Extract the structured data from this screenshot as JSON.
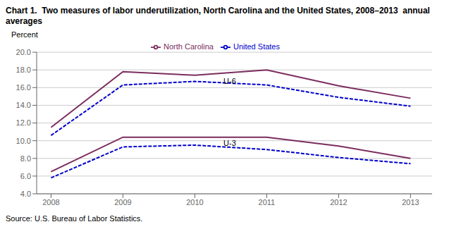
{
  "chart_data": {
    "type": "line",
    "title": "Chart 1.  Two measures of labor underutilization, North Carolina and the United States, 2008–2013  annual averages",
    "ylabel": "Percent",
    "source": "Source: U.S. Bureau of Labor Statistics.",
    "x": [
      2008,
      2009,
      2010,
      2011,
      2012,
      2013
    ],
    "xlim": [
      2007.8,
      2013.3
    ],
    "xticks": [
      2008,
      2009,
      2010,
      2011,
      2012,
      2013
    ],
    "ylim": [
      4.0,
      20.0
    ],
    "yticks": [
      {
        "value": 4,
        "label": "4.0"
      },
      {
        "value": 6,
        "label": "6.0"
      },
      {
        "value": 8,
        "label": "8.0"
      },
      {
        "value": 10,
        "label": "10.0"
      },
      {
        "value": 12,
        "label": "12.0"
      },
      {
        "value": 14,
        "label": "14.0"
      },
      {
        "value": 16,
        "label": "16.0"
      },
      {
        "value": 18,
        "label": "18.0"
      },
      {
        "value": 20,
        "label": "20.0"
      }
    ],
    "grid": true,
    "legend": "top",
    "series": [
      {
        "name": "North Carolina",
        "color": "#7B2D5E",
        "line_style": "solid",
        "values": [
          11.5,
          17.8,
          17.4,
          18.0,
          16.2,
          14.8
        ]
      },
      {
        "name": "United States",
        "color": "#0000CC",
        "line_style": "dashed",
        "values": [
          10.6,
          16.3,
          16.7,
          16.3,
          14.9,
          13.9
        ]
      },
      {
        "color": "#7B2D5E",
        "line_style": "solid",
        "values": [
          6.5,
          10.4,
          10.4,
          10.4,
          9.4,
          8.0
        ]
      },
      {
        "color": "#0000CC",
        "line_style": "dashed",
        "values": [
          5.8,
          9.3,
          9.5,
          9.0,
          8.1,
          7.4
        ]
      }
    ],
    "annotations": [
      {
        "text": "U-6",
        "x": 2010.35,
        "y": 16.75
      },
      {
        "text": "U-3",
        "x": 2010.35,
        "y": 9.7
      }
    ]
  }
}
